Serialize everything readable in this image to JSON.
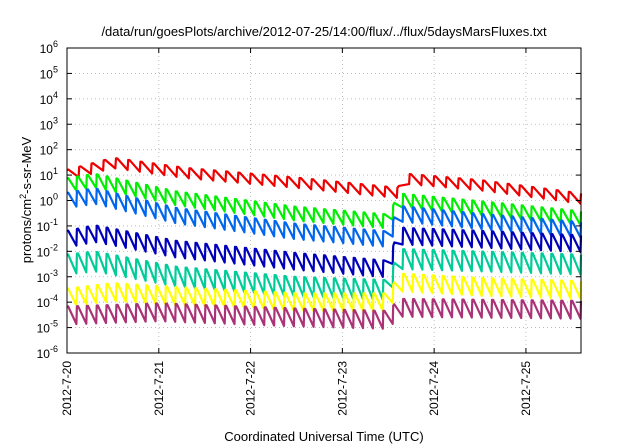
{
  "chart_data": {
    "type": "line",
    "title": "/data/run/goesPlots/archive/2012-07-25/14:00/flux/../flux/5daysMarsFluxes.txt",
    "xlabel": "Coordinated Universal Time (UTC)",
    "ylabel": {
      "pre": "protons/cm",
      "sup": "2",
      "post": "-s-sr-MeV"
    },
    "yscale": "log",
    "ylim": [
      1e-06,
      1000000.0
    ],
    "yticks": [
      {
        "base": "10",
        "exp": "-6",
        "value": 1e-06
      },
      {
        "base": "10",
        "exp": "-5",
        "value": 1e-05
      },
      {
        "base": "10",
        "exp": "-4",
        "value": 0.0001
      },
      {
        "base": "10",
        "exp": "-3",
        "value": 0.001
      },
      {
        "base": "10",
        "exp": "-2",
        "value": 0.01
      },
      {
        "base": "10",
        "exp": "-1",
        "value": 0.1
      },
      {
        "base": "10",
        "exp": "0",
        "value": 1
      },
      {
        "base": "10",
        "exp": "1",
        "value": 10
      },
      {
        "base": "10",
        "exp": "2",
        "value": 100
      },
      {
        "base": "10",
        "exp": "3",
        "value": 1000
      },
      {
        "base": "10",
        "exp": "4",
        "value": 10000
      },
      {
        "base": "10",
        "exp": "5",
        "value": 100000
      },
      {
        "base": "10",
        "exp": "6",
        "value": 1000000
      }
    ],
    "xlim": [
      0,
      5.6
    ],
    "xticks": [
      {
        "label": "2012-7-20",
        "value": 0
      },
      {
        "label": "2012-7-21",
        "value": 1
      },
      {
        "label": "2012-7-22",
        "value": 2
      },
      {
        "label": "2012-7-23",
        "value": 3
      },
      {
        "label": "2012-7-24",
        "value": 4
      },
      {
        "label": "2012-7-25",
        "value": 5
      }
    ],
    "grid": true,
    "series": [
      {
        "color": "#ee0000",
        "teeth": 42,
        "shift": 3.55,
        "trend": [
          [
            0,
            10
          ],
          [
            0.5,
            30
          ],
          [
            1.3,
            12
          ],
          [
            2.5,
            5
          ],
          [
            3.6,
            2
          ],
          [
            3.72,
            7
          ],
          [
            4.5,
            4
          ],
          [
            5.6,
            1.2
          ]
        ],
        "amp": 2.5
      },
      {
        "color": "#00ee00",
        "teeth": 52,
        "shift": 3.55,
        "trend": [
          [
            0,
            4
          ],
          [
            0.3,
            6
          ],
          [
            1.2,
            1.2
          ],
          [
            2.5,
            0.3
          ],
          [
            3.5,
            0.15
          ],
          [
            3.62,
            1.0
          ],
          [
            4.5,
            0.5
          ],
          [
            5.6,
            0.2
          ]
        ],
        "amp": 3.5
      },
      {
        "color": "#0066ee",
        "teeth": 52,
        "shift": 3.55,
        "trend": [
          [
            0,
            1
          ],
          [
            0.3,
            1.5
          ],
          [
            1.2,
            0.25
          ],
          [
            2.5,
            0.06
          ],
          [
            3.5,
            0.03
          ],
          [
            3.62,
            0.3
          ],
          [
            4.5,
            0.15
          ],
          [
            5.6,
            0.07
          ]
        ],
        "amp": 4.0
      },
      {
        "color": "#0000bb",
        "teeth": 52,
        "shift": 3.55,
        "trend": [
          [
            0,
            0.03
          ],
          [
            0.3,
            0.05
          ],
          [
            1.2,
            0.012
          ],
          [
            2.5,
            0.004
          ],
          [
            3.5,
            0.002
          ],
          [
            3.62,
            0.04
          ],
          [
            4.5,
            0.03
          ],
          [
            5.6,
            0.02
          ]
        ],
        "amp": 4.5
      },
      {
        "color": "#00cc99",
        "teeth": 52,
        "shift": 3.55,
        "trend": [
          [
            0,
            0.003
          ],
          [
            0.3,
            0.004
          ],
          [
            1.2,
            0.001
          ],
          [
            2.5,
            0.0004
          ],
          [
            3.5,
            0.0003
          ],
          [
            3.62,
            0.005
          ],
          [
            4.5,
            0.004
          ],
          [
            5.6,
            0.003
          ]
        ],
        "amp": 6.0
      },
      {
        "color": "#ffff00",
        "teeth": 52,
        "shift": 3.55,
        "trend": [
          [
            0,
            0.00015
          ],
          [
            0.5,
            0.00025
          ],
          [
            1.5,
            0.00015
          ],
          [
            2.5,
            0.0001
          ],
          [
            3.5,
            0.0001
          ],
          [
            3.62,
            0.0006
          ],
          [
            4.5,
            0.0004
          ],
          [
            5.6,
            0.0003
          ]
        ],
        "amp": 5.0
      },
      {
        "color": "#aa3377",
        "teeth": 52,
        "shift": 3.55,
        "trend": [
          [
            0,
            3e-05
          ],
          [
            1.0,
            4e-05
          ],
          [
            2.5,
            2.5e-05
          ],
          [
            3.5,
            2e-05
          ],
          [
            3.62,
            6e-05
          ],
          [
            5.6,
            5e-05
          ]
        ],
        "amp": 5.0
      }
    ]
  }
}
